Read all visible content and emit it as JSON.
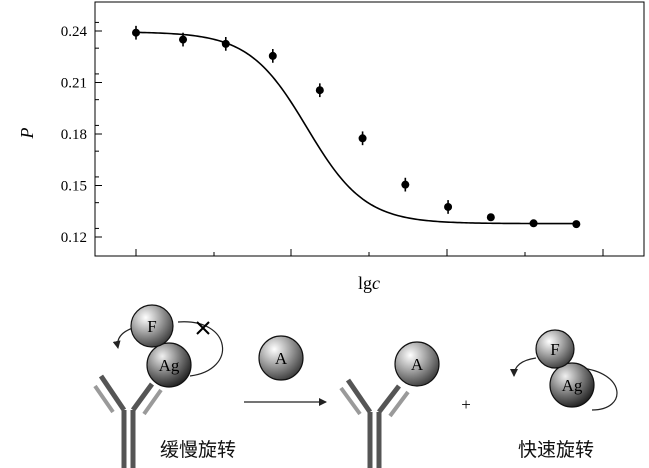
{
  "chart_data": {
    "type": "scatter",
    "xlabel_prefix": "lg",
    "xlabel_var": "c",
    "ylabel": "P",
    "ylim": [
      0.113,
      0.253
    ],
    "yticks": [
      0.24,
      0.21,
      0.18,
      0.15,
      0.12
    ],
    "ytick_labels": [
      "0.24",
      "0.21",
      "0.18",
      "0.15",
      "0.12"
    ],
    "x_major_ticks": [
      1,
      2,
      3,
      4,
      5
    ],
    "x_minor_ticks": [
      0.5,
      1.5,
      2.5,
      3.5,
      4.5
    ],
    "xlim": [
      0,
      5.4
    ],
    "fit_curve": {
      "top": 0.2395,
      "bottom": 0.1278,
      "midpoint": 2.45,
      "slope": 1.28
    },
    "grid": false,
    "series": [
      {
        "x": [
          0.45,
          1.0,
          1.5,
          2.05,
          2.6,
          3.1,
          3.6,
          4.1,
          4.6,
          5.1,
          5.6
        ],
        "y": [
          0.239,
          0.235,
          0.2325,
          0.2255,
          0.2055,
          0.1775,
          0.1505,
          0.1375,
          0.1315,
          0.128,
          0.1275
        ],
        "err": [
          0.004,
          0.004,
          0.004,
          0.004,
          0.004,
          0.004,
          0.004,
          0.004,
          0.002,
          0.001,
          0.001
        ]
      }
    ]
  },
  "diagram": {
    "slow_rotation": "缓慢旋转",
    "fast_rotation": "快速旋转",
    "F": "F",
    "Ag": "Ag",
    "A": "A",
    "blocked": "×",
    "plus": "+"
  }
}
